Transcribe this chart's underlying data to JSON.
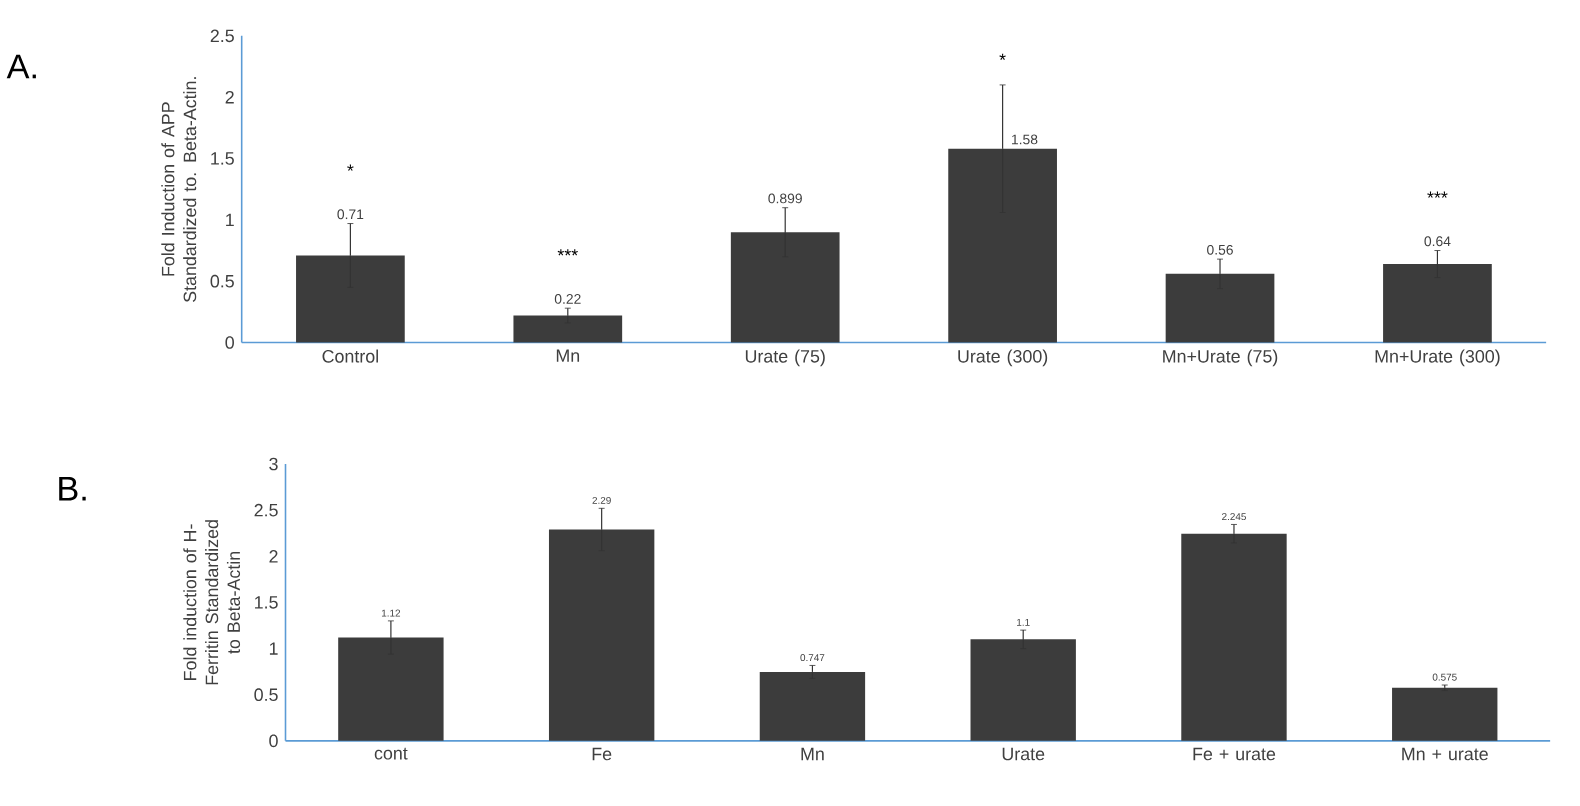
{
  "chart_data": [
    {
      "type": "bar",
      "title": "A.",
      "ylabel": "Fold Induction of APP Standardized to. Beta-Actin.",
      "categories": [
        "Control",
        "Mn",
        "Urate (75)",
        "Urate (300)",
        "Mn+Urate (75)",
        "Mn+Urate (300)"
      ],
      "values": [
        0.71,
        0.22,
        0.899,
        1.58,
        0.56,
        0.64
      ],
      "errors": [
        0.26,
        0.06,
        0.2,
        0.52,
        0.12,
        0.11
      ],
      "color": "#3c3c3c",
      "data_labels": true,
      "ylim": [
        0,
        2.5
      ],
      "yticks": [
        0,
        0.5,
        1,
        1.5,
        2,
        2.5
      ],
      "annotations": [
        "*",
        "***",
        "*",
        "***"
      ]
    },
    {
      "type": "bar",
      "title": "B.",
      "ylabel": "Fold induction of H-Ferritin Standardized to Beta-Actin",
      "categories": [
        "cont",
        "Fe",
        "Mn",
        "Urate",
        "Fe + urate",
        "Mn + urate"
      ],
      "values": [
        1.12,
        2.29,
        0.747,
        1.1,
        2.245,
        0.575
      ],
      "errors": [
        0.18,
        0.23,
        0.07,
        0.1,
        0.1,
        0.03
      ],
      "color": "#3c3c3c",
      "data_labels": true,
      "ylim": [
        0,
        3
      ],
      "yticks": [
        0,
        0.5,
        1,
        1.5,
        2,
        2.5,
        3
      ]
    }
  ]
}
